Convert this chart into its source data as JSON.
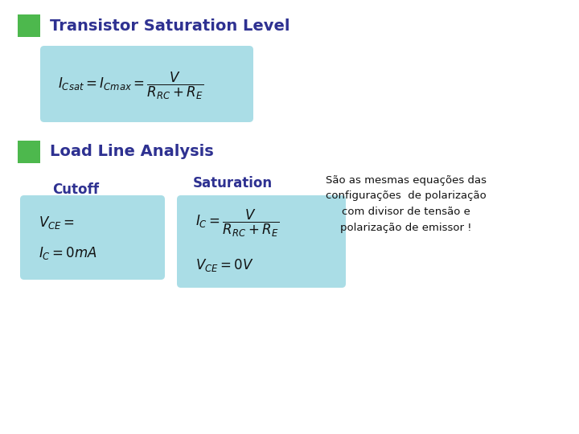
{
  "bg_color": "#ffffff",
  "green_color": "#4db84d",
  "title_color": "#2e3191",
  "box_bg_color": "#aadde6",
  "cutsat_color": "#2e3191",
  "annotation_color": "#111111",
  "title1": "Transistor Saturation Level",
  "title2": "Load Line Analysis",
  "label_cutoff": "Cutoff",
  "label_saturation": "Saturation",
  "annotation_text": "São as mesmas equações das\nconfigurações  de polarização\ncom divisor de tensão e\npolarização de emissor !"
}
